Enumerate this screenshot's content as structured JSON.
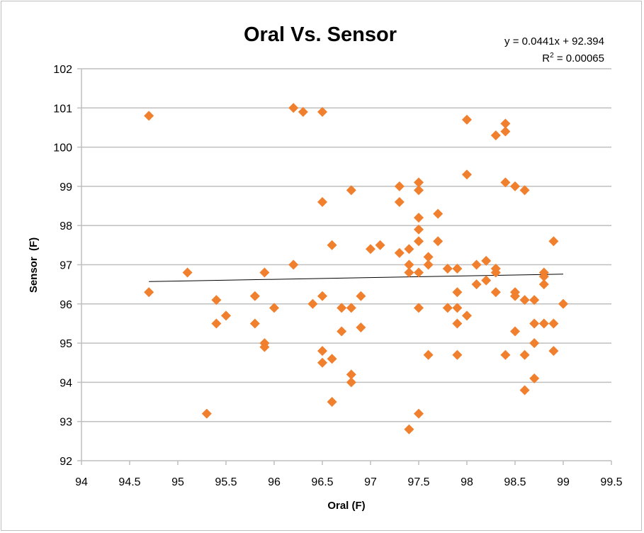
{
  "chart_data": {
    "type": "scatter",
    "title": "Oral Vs. Sensor",
    "xlabel": "Oral (F)",
    "ylabel": "Sensor  (F)",
    "xlim": [
      94,
      99.5
    ],
    "ylim": [
      92,
      102
    ],
    "x_ticks": [
      "94",
      "94.5",
      "95",
      "95.5",
      "96",
      "96.5",
      "97",
      "97.5",
      "98",
      "98.5",
      "99",
      "99.5"
    ],
    "y_ticks": [
      "92",
      "93",
      "94",
      "95",
      "96",
      "97",
      "98",
      "99",
      "100",
      "101",
      "102"
    ],
    "grid": "horizontal",
    "marker_color": "#f07f2e",
    "trendline": {
      "type": "linear",
      "slope": 0.0441,
      "intercept": 92.394,
      "x_range": [
        94.7,
        99.0
      ],
      "equation_label": "y = 0.0441x + 92.394",
      "r2_prefix": "R",
      "r2_sup": "2",
      "r2_suffix": " = 0.00065"
    },
    "points": [
      [
        94.7,
        100.8
      ],
      [
        94.7,
        96.3
      ],
      [
        95.1,
        96.8
      ],
      [
        95.3,
        93.2
      ],
      [
        95.4,
        96.1
      ],
      [
        95.4,
        95.5
      ],
      [
        95.5,
        95.7
      ],
      [
        95.8,
        96.2
      ],
      [
        95.8,
        95.5
      ],
      [
        95.9,
        96.8
      ],
      [
        95.9,
        95.0
      ],
      [
        95.9,
        94.9
      ],
      [
        96.0,
        95.9
      ],
      [
        96.2,
        101.0
      ],
      [
        96.3,
        100.9
      ],
      [
        96.5,
        100.9
      ],
      [
        96.5,
        98.6
      ],
      [
        96.2,
        97.0
      ],
      [
        96.6,
        97.5
      ],
      [
        96.4,
        96.0
      ],
      [
        96.5,
        96.2
      ],
      [
        96.7,
        95.9
      ],
      [
        96.8,
        95.9
      ],
      [
        96.9,
        96.2
      ],
      [
        96.7,
        95.3
      ],
      [
        96.9,
        95.4
      ],
      [
        96.5,
        94.8
      ],
      [
        96.6,
        94.6
      ],
      [
        96.5,
        94.5
      ],
      [
        96.8,
        94.2
      ],
      [
        96.8,
        94.0
      ],
      [
        96.6,
        93.5
      ],
      [
        96.8,
        98.9
      ],
      [
        97.0,
        97.4
      ],
      [
        97.1,
        97.5
      ],
      [
        97.3,
        99.0
      ],
      [
        97.5,
        99.1
      ],
      [
        97.5,
        98.9
      ],
      [
        97.3,
        98.6
      ],
      [
        97.5,
        98.2
      ],
      [
        97.7,
        98.3
      ],
      [
        97.5,
        97.9
      ],
      [
        97.5,
        97.6
      ],
      [
        97.7,
        97.6
      ],
      [
        97.3,
        97.3
      ],
      [
        97.4,
        97.4
      ],
      [
        97.6,
        97.2
      ],
      [
        97.4,
        97.0
      ],
      [
        97.6,
        97.0
      ],
      [
        97.4,
        96.8
      ],
      [
        97.5,
        96.8
      ],
      [
        97.8,
        96.9
      ],
      [
        97.9,
        96.9
      ],
      [
        97.5,
        95.9
      ],
      [
        97.8,
        95.9
      ],
      [
        97.9,
        95.9
      ],
      [
        97.9,
        95.5
      ],
      [
        98.0,
        95.7
      ],
      [
        97.6,
        94.7
      ],
      [
        97.9,
        94.7
      ],
      [
        97.5,
        93.2
      ],
      [
        97.4,
        92.8
      ],
      [
        98.0,
        100.7
      ],
      [
        98.4,
        100.6
      ],
      [
        98.4,
        100.4
      ],
      [
        98.3,
        100.3
      ],
      [
        98.0,
        99.3
      ],
      [
        98.4,
        99.1
      ],
      [
        98.5,
        99.0
      ],
      [
        98.6,
        98.9
      ],
      [
        98.9,
        97.6
      ],
      [
        98.1,
        97.0
      ],
      [
        98.2,
        97.1
      ],
      [
        98.3,
        96.9
      ],
      [
        98.3,
        96.8
      ],
      [
        98.1,
        96.5
      ],
      [
        98.2,
        96.6
      ],
      [
        98.8,
        96.8
      ],
      [
        98.8,
        96.7
      ],
      [
        98.8,
        96.5
      ],
      [
        97.9,
        96.3
      ],
      [
        98.3,
        96.3
      ],
      [
        98.5,
        96.3
      ],
      [
        98.5,
        96.2
      ],
      [
        98.6,
        96.1
      ],
      [
        98.7,
        96.1
      ],
      [
        99.0,
        96.0
      ],
      [
        98.5,
        95.3
      ],
      [
        98.7,
        95.5
      ],
      [
        98.8,
        95.5
      ],
      [
        98.9,
        95.5
      ],
      [
        98.4,
        94.7
      ],
      [
        98.6,
        94.7
      ],
      [
        98.7,
        95.0
      ],
      [
        98.9,
        94.8
      ],
      [
        98.7,
        94.1
      ],
      [
        98.6,
        93.8
      ]
    ]
  }
}
